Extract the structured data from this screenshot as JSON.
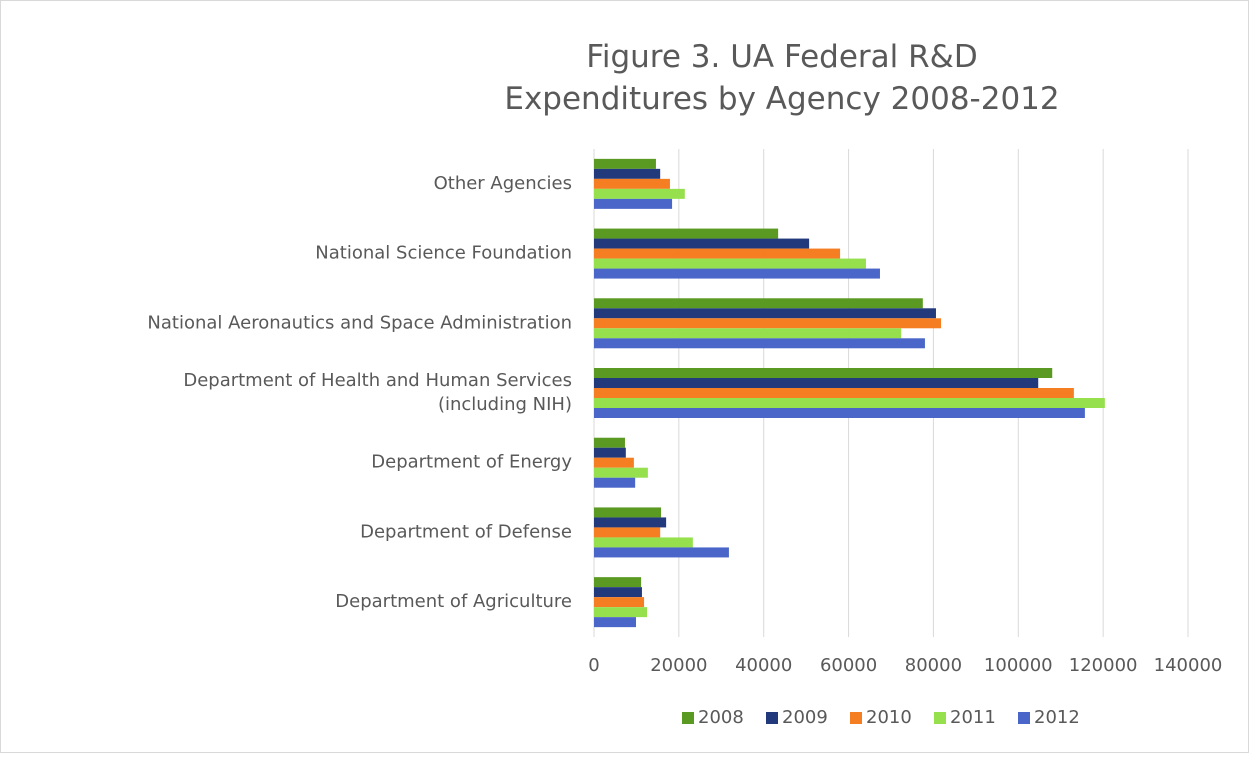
{
  "chart_data": {
    "type": "hbar",
    "title": "Figure 3.     UA Federal R&D\nExpenditures by Agency 2008-2012",
    "categories": [
      "Other Agencies",
      "National Science Foundation",
      "National Aeronautics and Space Administration",
      "Department of Health and Human Services\n(including NIH)",
      "Department of Energy",
      "Department of Defense",
      "Department of Agriculture"
    ],
    "series": [
      {
        "name": "2008",
        "color": "#5b9a22",
        "values": [
          14600,
          43400,
          77500,
          108000,
          7300,
          15800,
          11100
        ]
      },
      {
        "name": "2009",
        "color": "#223a7c",
        "values": [
          15600,
          50700,
          80600,
          104700,
          7500,
          17000,
          11300
        ]
      },
      {
        "name": "2010",
        "color": "#f57d22",
        "values": [
          17900,
          58000,
          81800,
          113100,
          9400,
          15600,
          11800
        ]
      },
      {
        "name": "2011",
        "color": "#96e04e",
        "values": [
          21400,
          64100,
          72400,
          120400,
          12700,
          23300,
          12500
        ]
      },
      {
        "name": "2012",
        "color": "#4a66c8",
        "values": [
          18400,
          67400,
          78000,
          115700,
          9700,
          31800,
          9900
        ]
      }
    ],
    "xlim": [
      0,
      140000
    ],
    "xticks": [
      0,
      20000,
      40000,
      60000,
      80000,
      100000,
      120000,
      140000
    ],
    "grid": true,
    "legend": "bottom"
  }
}
